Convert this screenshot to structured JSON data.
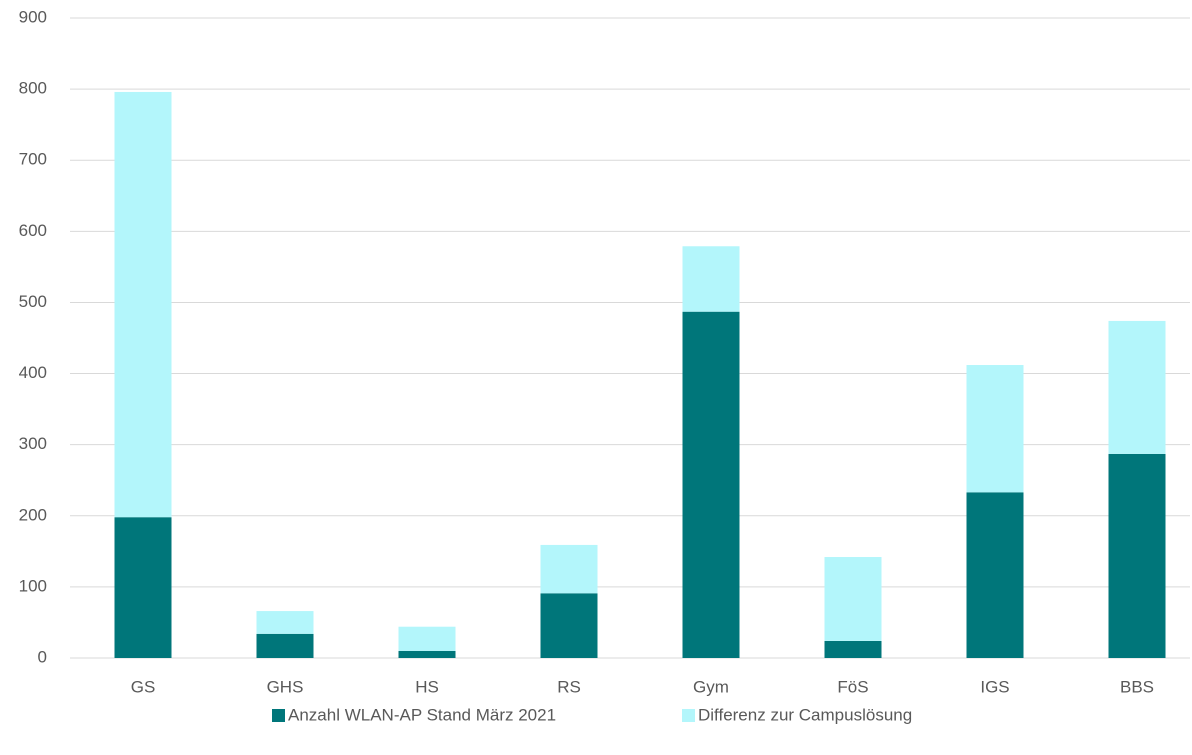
{
  "chart_data": {
    "type": "bar",
    "stacked": true,
    "categories": [
      "GS",
      "GHS",
      "HS",
      "RS",
      "Gym",
      "FöS",
      "IGS",
      "BBS"
    ],
    "series": [
      {
        "name": "Anzahl WLAN-AP Stand März 2021",
        "color": "#00767a",
        "values": [
          198,
          34,
          10,
          91,
          487,
          24,
          233,
          287
        ]
      },
      {
        "name": "Differenz zur Campuslösung",
        "color": "#b3f6fb",
        "values": [
          598,
          32,
          34,
          68,
          92,
          118,
          179,
          187
        ]
      }
    ],
    "ylim": [
      0,
      900
    ],
    "yticks": [
      0,
      100,
      200,
      300,
      400,
      500,
      600,
      700,
      800,
      900
    ],
    "grid": true,
    "legend": "bottom"
  }
}
